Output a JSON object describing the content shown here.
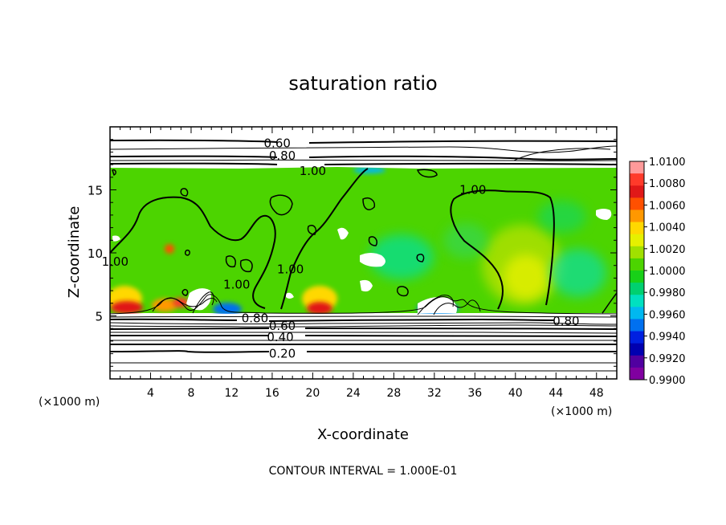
{
  "chart_data": {
    "type": "heatmap",
    "title": "saturation ratio",
    "xlabel": "X-coordinate",
    "ylabel": "Z-coordinate",
    "x_unit_left": "(×1000 m)",
    "x_unit_right": "(×1000 m)",
    "xlim": [
      0,
      50
    ],
    "ylim": [
      0,
      20
    ],
    "x_ticks": [
      4,
      8,
      12,
      16,
      20,
      24,
      28,
      32,
      36,
      40,
      44,
      48
    ],
    "y_ticks": [
      5,
      10,
      15
    ],
    "colorbar": {
      "labels": [
        "1.0100",
        "1.0080",
        "1.0060",
        "1.0040",
        "1.0020",
        "1.0000",
        "0.9980",
        "0.9960",
        "0.9940",
        "0.9920",
        "0.9900"
      ],
      "colors": [
        "#ff9a9a",
        "#ff3a2a",
        "#e01818",
        "#ff5000",
        "#ff9800",
        "#ffd800",
        "#e6f000",
        "#a0e000",
        "#4cd400",
        "#18d018",
        "#00d070",
        "#00e0c0",
        "#00b8f0",
        "#0070f0",
        "#0020e0",
        "#0000b0",
        "#5000a0",
        "#8000a0"
      ]
    },
    "contour_labels": [
      {
        "text": "0.60",
        "x": 16.5,
        "z": 18.7
      },
      {
        "text": "0.80",
        "x": 17.0,
        "z": 17.7
      },
      {
        "text": "1.00",
        "x": 20.0,
        "z": 16.5
      },
      {
        "text": "1.00",
        "x": 0.5,
        "z": 9.3
      },
      {
        "text": "1.00",
        "x": 12.5,
        "z": 7.5
      },
      {
        "text": "1.00",
        "x": 17.8,
        "z": 8.7
      },
      {
        "text": "1.00",
        "x": 35.8,
        "z": 15.0
      },
      {
        "text": "0.80",
        "x": 14.3,
        "z": 4.8
      },
      {
        "text": "0.80",
        "x": 45.0,
        "z": 4.6
      },
      {
        "text": "0.60",
        "x": 17.0,
        "z": 4.2
      },
      {
        "text": "0.40",
        "x": 16.8,
        "z": 3.3
      },
      {
        "text": "0.20",
        "x": 17.0,
        "z": 2.0
      }
    ],
    "contour_interval_text": "CONTOUR INTERVAL = 1.000E-01"
  }
}
